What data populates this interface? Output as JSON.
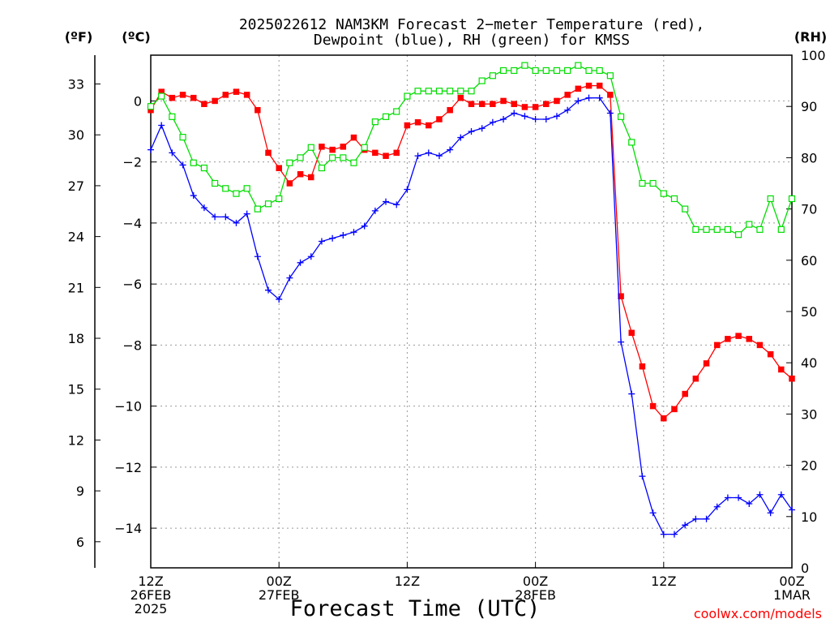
{
  "chart_data": {
    "type": "line",
    "title_lines": [
      "2025022612 NAM3KM Forecast 2−meter Temperature (red),",
      "Dewpoint (blue), RH (green) for KMSS"
    ],
    "xlabel": "Forecast Time (UTC)",
    "watermark": "coolwx.com/models",
    "unit_labels": {
      "fahrenheit": "(ºF)",
      "celsius": "(ºC)",
      "rh": "(RH)"
    },
    "x_hours_since_start_range": [
      0,
      60
    ],
    "x_ticks": [
      {
        "hour": 0,
        "lines": [
          "12Z",
          "26FEB",
          "2025"
        ]
      },
      {
        "hour": 12,
        "lines": [
          "00Z",
          "27FEB"
        ]
      },
      {
        "hour": 24,
        "lines": [
          "12Z"
        ]
      },
      {
        "hour": 36,
        "lines": [
          "00Z",
          "28FEB"
        ]
      },
      {
        "hour": 48,
        "lines": [
          "12Z"
        ]
      },
      {
        "hour": 60,
        "lines": [
          "00Z",
          "1MAR"
        ]
      }
    ],
    "y_celsius_range": [
      -15.3,
      1.5
    ],
    "y_celsius_ticks": [
      "0",
      "−2",
      "−4",
      "−6",
      "−8",
      "−10",
      "−12",
      "−14"
    ],
    "y_fahrenheit_ticks": [
      "33",
      "30",
      "27",
      "24",
      "21",
      "18",
      "15",
      "12",
      "9",
      "6"
    ],
    "y_rh_range": [
      0,
      100
    ],
    "y_rh_ticks": [
      "0",
      "10",
      "20",
      "30",
      "40",
      "50",
      "60",
      "70",
      "80",
      "90",
      "100"
    ],
    "colors": {
      "temperature": "#ff0000",
      "dewpoint": "#0000ff",
      "rh": "#00dd00",
      "grid": "#999999",
      "watermark": "#ff0000"
    },
    "series": [
      {
        "name": "Temperature",
        "units": "°C",
        "x": [
          0,
          1,
          2,
          3,
          4,
          5,
          6,
          7,
          8,
          9,
          10,
          11,
          12,
          13,
          14,
          15,
          16,
          17,
          18,
          19,
          20,
          21,
          22,
          23,
          24,
          25,
          26,
          27,
          28,
          29,
          30,
          31,
          32,
          33,
          34,
          35,
          36,
          37,
          38,
          39,
          40,
          41,
          42,
          43,
          44,
          45,
          46,
          47,
          48,
          49,
          50,
          51,
          52,
          53,
          54,
          55,
          56,
          57,
          58,
          59,
          60
        ],
        "values": [
          -0.3,
          0.3,
          0.1,
          0.2,
          0.1,
          -0.1,
          0.0,
          0.2,
          0.3,
          0.2,
          -0.3,
          -1.7,
          -2.2,
          -2.7,
          -2.4,
          -2.5,
          -1.5,
          -1.6,
          -1.5,
          -1.2,
          -1.6,
          -1.7,
          -1.8,
          -1.7,
          -0.8,
          -0.7,
          -0.8,
          -0.6,
          -0.3,
          0.1,
          -0.1,
          -0.1,
          -0.1,
          0.0,
          -0.1,
          -0.2,
          -0.2,
          -0.1,
          0.0,
          0.2,
          0.4,
          0.5,
          0.5,
          0.2,
          -6.4,
          -7.6,
          -8.7,
          -10.0,
          -10.4,
          -10.1,
          -9.6,
          -9.1,
          -8.6,
          -8.0,
          -7.8,
          -7.7,
          -7.8,
          -8.0,
          -8.3,
          -8.8,
          -9.1
        ]
      },
      {
        "name": "Dewpoint",
        "units": "°C",
        "x": [
          0,
          1,
          2,
          3,
          4,
          5,
          6,
          7,
          8,
          9,
          10,
          11,
          12,
          13,
          14,
          15,
          16,
          17,
          18,
          19,
          20,
          21,
          22,
          23,
          24,
          25,
          26,
          27,
          28,
          29,
          30,
          31,
          32,
          33,
          34,
          35,
          36,
          37,
          38,
          39,
          40,
          41,
          42,
          43,
          44,
          45,
          46,
          47,
          48,
          49,
          50,
          51,
          52,
          53,
          54,
          55,
          56,
          57,
          58,
          59,
          60
        ],
        "values": [
          -1.6,
          -0.8,
          -1.7,
          -2.1,
          -3.1,
          -3.5,
          -3.8,
          -3.8,
          -4.0,
          -3.7,
          -5.1,
          -6.2,
          -6.5,
          -5.8,
          -5.3,
          -5.1,
          -4.6,
          -4.5,
          -4.4,
          -4.3,
          -4.1,
          -3.6,
          -3.3,
          -3.4,
          -2.9,
          -1.8,
          -1.7,
          -1.8,
          -1.6,
          -1.2,
          -1.0,
          -0.9,
          -0.7,
          -0.6,
          -0.4,
          -0.5,
          -0.6,
          -0.6,
          -0.5,
          -0.3,
          0.0,
          0.1,
          0.1,
          -0.4,
          -7.9,
          -9.6,
          -12.3,
          -13.5,
          -14.2,
          -14.2,
          -13.9,
          -13.7,
          -13.7,
          -13.3,
          -13.0,
          -13.0,
          -13.2,
          -12.9,
          -13.5,
          -12.9,
          -13.4
        ]
      },
      {
        "name": "RH",
        "units": "%",
        "x": [
          0,
          1,
          2,
          3,
          4,
          5,
          6,
          7,
          8,
          9,
          10,
          11,
          12,
          13,
          14,
          15,
          16,
          17,
          18,
          19,
          20,
          21,
          22,
          23,
          24,
          25,
          26,
          27,
          28,
          29,
          30,
          31,
          32,
          33,
          34,
          35,
          36,
          37,
          38,
          39,
          40,
          41,
          42,
          43,
          44,
          45,
          46,
          47,
          48,
          49,
          50,
          51,
          52,
          53,
          54,
          55,
          56,
          57,
          58,
          59,
          60
        ],
        "values": [
          90,
          92,
          88,
          84,
          79,
          78,
          75,
          74,
          73,
          74,
          70,
          71,
          72,
          79,
          80,
          82,
          78,
          80,
          80,
          79,
          82,
          87,
          88,
          89,
          92,
          93,
          93,
          93,
          93,
          93,
          93,
          95,
          96,
          97,
          97,
          98,
          97,
          97,
          97,
          97,
          98,
          97,
          97,
          96,
          88,
          83,
          75,
          75,
          73,
          72,
          70,
          66,
          66,
          66,
          66,
          65,
          67,
          66,
          72,
          66,
          72
        ]
      }
    ]
  }
}
